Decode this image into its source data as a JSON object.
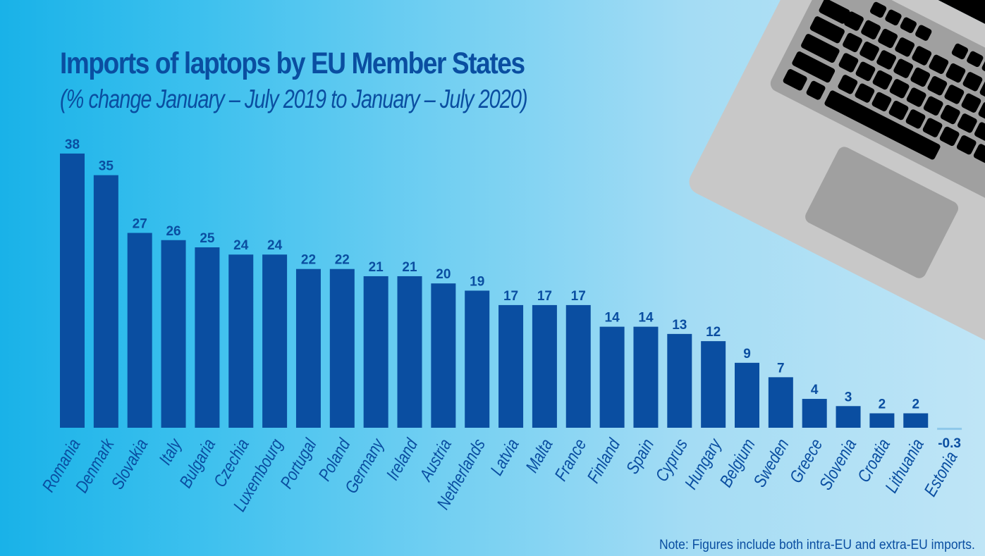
{
  "chart_data": {
    "type": "bar",
    "title": "Imports of laptops by EU Member States",
    "subtitle": "(% change January – July 2019 to January – July 2020)",
    "xlabel": "",
    "ylabel": "% change",
    "ylim": [
      -0.3,
      38
    ],
    "grid": false,
    "legend": null,
    "categories": [
      "Romania",
      "Denmark",
      "Slovakia",
      "Italy",
      "Bulgaria",
      "Czechia",
      "Luxembourg",
      "Portugal",
      "Poland",
      "Germany",
      "Ireland",
      "Austria",
      "Netherlands",
      "Latvia",
      "Malta",
      "France",
      "Finland",
      "Spain",
      "Cyprus",
      "Hungary",
      "Belgium",
      "Sweden",
      "Greece",
      "Slovenia",
      "Croatia",
      "Lithuania",
      "Estonia"
    ],
    "values": [
      38,
      35,
      27,
      26,
      25,
      24,
      24,
      22,
      22,
      21,
      21,
      20,
      19,
      17,
      17,
      17,
      14,
      14,
      13,
      12,
      9,
      7,
      4,
      3,
      2,
      2,
      -0.3
    ],
    "value_labels": [
      "38",
      "35",
      "27",
      "26",
      "25",
      "24",
      "24",
      "22",
      "22",
      "21",
      "21",
      "20",
      "19",
      "17",
      "17",
      "17",
      "14",
      "14",
      "13",
      "12",
      "9",
      "7",
      "4",
      "3",
      "2",
      "2",
      "-0.3"
    ],
    "note": "Note: Figures include both intra-EU and extra-EU imports."
  },
  "colors": {
    "bar": "#0a4ea1",
    "text": "#0a4ea1",
    "background_left": "#19b2e8",
    "background_right": "#bfe5f6",
    "laptop_body": "#c8c8c8",
    "laptop_keyboard_area": "#a0a0a0",
    "laptop_keys": "#000000",
    "laptop_screen": "#000000"
  },
  "decoration": {
    "illustration": "laptop-icon"
  }
}
